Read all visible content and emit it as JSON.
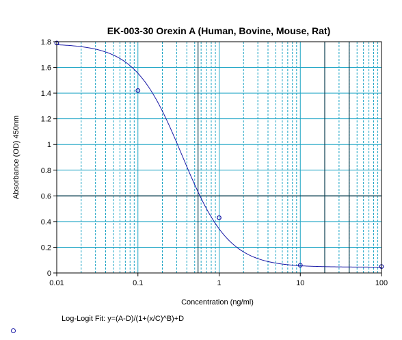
{
  "chart_data": {
    "type": "scatter",
    "title": "EK-003-30 Orexin A (Human, Bovine, Mouse, Rat)",
    "xlabel": "Concentration (ng/ml)",
    "ylabel": "Absorbance (OD) 450nm",
    "x_scale": "log",
    "xlim": [
      0.01,
      100
    ],
    "ylim": [
      0,
      1.8
    ],
    "x_ticks": [
      "0.01",
      "0.1",
      "1",
      "10",
      "100"
    ],
    "y_ticks": [
      "0",
      "0.2",
      "0.4",
      "0.6",
      "0.8",
      "1",
      "1.2",
      "1.4",
      "1.6",
      "1.8"
    ],
    "grid": true,
    "series": [
      {
        "x": [
          0.01,
          0.1,
          1,
          10,
          100
        ],
        "y": [
          1.79,
          1.42,
          0.43,
          0.06,
          0.05
        ]
      }
    ],
    "fit": {
      "label": "Log-Logit Fit: y=(A-D)/(1+(x/C)^B)+D",
      "A": 1.785,
      "B": 1.5,
      "C": 0.35,
      "D": 0.045
    },
    "reference_lines": {
      "x": [
        0.55,
        20,
        40
      ],
      "y": [
        0.6
      ]
    },
    "colors": {
      "grid": "#1aa3c4",
      "reference": "#0b3d4d",
      "curve": "#1a1aa6",
      "points": "#1a1aa6",
      "axes": "#000000"
    }
  }
}
